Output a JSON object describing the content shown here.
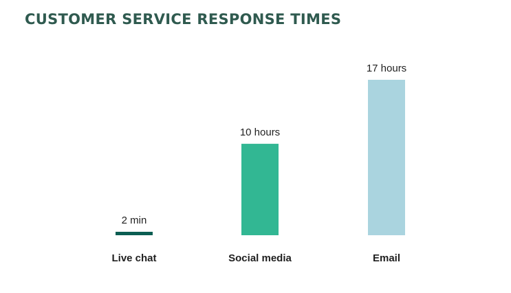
{
  "title": "CUSTOMER SERVICE RESPONSE TIMES",
  "chart_data": {
    "type": "bar",
    "title": "CUSTOMER SERVICE RESPONSE TIMES",
    "categories": [
      "Live chat",
      "Social media",
      "Email"
    ],
    "values": [
      0.0333,
      10,
      17
    ],
    "unit": "hours",
    "value_labels": [
      "2 min",
      "10 hours",
      "17 hours"
    ],
    "colors": [
      "#0b5e52",
      "#32b793",
      "#aad4df"
    ],
    "xlabel": "",
    "ylabel": "",
    "ylim": [
      0,
      17
    ],
    "grid": false,
    "legend": "none"
  }
}
